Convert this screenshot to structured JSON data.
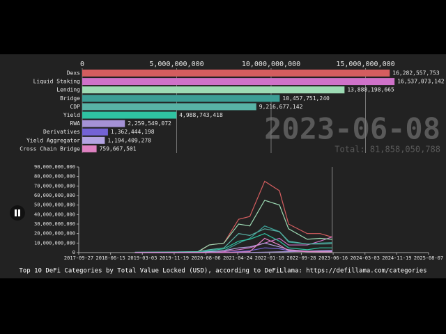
{
  "chart_data": [
    {
      "type": "bar",
      "orientation": "horizontal",
      "categories": [
        "Dexs",
        "Liquid Staking",
        "Lending",
        "Bridge",
        "CDP",
        "Yield",
        "RWA",
        "Derivatives",
        "Yield Aggregator",
        "Cross Chain Bridge"
      ],
      "values": [
        16282557753,
        16537073142,
        13888198665,
        10457751240,
        9216677142,
        4988743418,
        2259549072,
        1362444198,
        1194409278,
        759667501
      ],
      "value_labels": [
        "16,282,557,753",
        "16,537,073,142",
        "13,888,198,665",
        "10,457,751,240",
        "9,216,677,142",
        "4,988,743,418",
        "2,259,549,072",
        "1,362,444,198",
        "1,194,409,278",
        "759,667,501"
      ],
      "colors": [
        "#d45d5f",
        "#cf72c9",
        "#9ddbb4",
        "#3c9e95",
        "#58b3a6",
        "#2fc3a2",
        "#a592d6",
        "#7463d6",
        "#b4a4e2",
        "#df82c2"
      ],
      "xlim": [
        0,
        19000000000
      ],
      "xticks": [
        0,
        {
          "value": 5000000000,
          "label": "5,000,000,000"
        },
        {
          "value": 10000000000,
          "label": "10,000,000,000"
        },
        {
          "value": 15000000000,
          "label": "15,000,000,000"
        }
      ],
      "grid": true,
      "date": "2023-06-08",
      "total": "Total: 81,858,050,788"
    },
    {
      "type": "line",
      "x": [
        "2019-01-01",
        "2020-01-01",
        "2020-06-01",
        "2020-09-01",
        "2021-01-01",
        "2021-05-01",
        "2021-08-01",
        "2021-12-01",
        "2022-04-01",
        "2022-06-15",
        "2022-11-15",
        "2023-03-01",
        "2023-06-08"
      ],
      "series": [
        {
          "name": "Dexs",
          "color": "#d45d5f",
          "values": [
            100000000,
            200000000,
            500000000,
            8000000000,
            10000000000,
            35000000000,
            38000000000,
            75000000000,
            65000000000,
            30000000000,
            20000000000,
            20000000000,
            16282557753
          ]
        },
        {
          "name": "Liquid Staking",
          "color": "#cf72c9",
          "values": [
            0,
            0,
            0,
            0,
            1000000000,
            3000000000,
            5000000000,
            10000000000,
            15000000000,
            8000000000,
            8000000000,
            12000000000,
            16537073142
          ]
        },
        {
          "name": "Lending",
          "color": "#9ddbb4",
          "values": [
            300000000,
            600000000,
            1000000000,
            8000000000,
            10000000000,
            30000000000,
            28000000000,
            55000000000,
            50000000000,
            25000000000,
            14000000000,
            15000000000,
            13888198665
          ]
        },
        {
          "name": "Bridge",
          "color": "#3c9e95",
          "values": [
            0,
            0,
            0,
            500000000,
            2000000000,
            10000000000,
            15000000000,
            28000000000,
            22000000000,
            11000000000,
            9000000000,
            10000000000,
            10457751240
          ]
        },
        {
          "name": "CDP",
          "color": "#58b3a6",
          "values": [
            500000000,
            800000000,
            1000000000,
            3000000000,
            5000000000,
            20000000000,
            18000000000,
            25000000000,
            22000000000,
            12000000000,
            9000000000,
            9000000000,
            9216677142
          ]
        },
        {
          "name": "Yield",
          "color": "#2fc3a2",
          "values": [
            0,
            0,
            0,
            2000000000,
            4000000000,
            12000000000,
            14000000000,
            20000000000,
            12000000000,
            5000000000,
            3000000000,
            5000000000,
            4988743418
          ]
        },
        {
          "name": "RWA",
          "color": "#a592d6",
          "values": [
            0,
            0,
            0,
            0,
            0,
            100000000,
            200000000,
            500000000,
            800000000,
            1000000000,
            1500000000,
            2000000000,
            2259549072
          ]
        },
        {
          "name": "Derivatives",
          "color": "#7463d6",
          "values": [
            0,
            0,
            0,
            0,
            200000000,
            1000000000,
            2000000000,
            5000000000,
            4000000000,
            2000000000,
            1000000000,
            1200000000,
            1362444198
          ]
        },
        {
          "name": "Yield Aggregator",
          "color": "#b4a4e2",
          "values": [
            0,
            0,
            0,
            1000000000,
            2000000000,
            5000000000,
            6000000000,
            10000000000,
            6000000000,
            3000000000,
            1500000000,
            1300000000,
            1194409278
          ]
        },
        {
          "name": "Cross Chain Bridge",
          "color": "#df82c2",
          "values": [
            0,
            0,
            0,
            0,
            0,
            500000000,
            1000000000,
            15000000000,
            8000000000,
            2000000000,
            1000000000,
            800000000,
            759667501
          ]
        }
      ],
      "xlim": [
        "2017-09-27",
        "2025-08-07"
      ],
      "xticks": [
        "2017-09-27",
        "2018-06-15",
        "2019-03-03",
        "2019-11-19",
        "2020-08-06",
        "2021-04-24",
        "2022-01-10",
        "2022-09-28",
        "2023-06-16",
        "2024-03-03",
        "2024-11-19",
        "2025-08-07"
      ],
      "ylim": [
        0,
        90000000000
      ],
      "yticks": [
        0,
        {
          "value": 10000000000,
          "label": "10,000,000,000"
        },
        {
          "value": 20000000000,
          "label": "20,000,000,000"
        },
        {
          "value": 30000000000,
          "label": "30,000,000,000"
        },
        {
          "value": 40000000000,
          "label": "40,000,000,000"
        },
        {
          "value": 50000000000,
          "label": "50,000,000,000"
        },
        {
          "value": 60000000000,
          "label": "60,000,000,000"
        },
        {
          "value": 70000000000,
          "label": "70,000,000,000"
        },
        {
          "value": 80000000000,
          "label": "80,000,000,000"
        },
        {
          "value": 90000000000,
          "label": "90,000,000,000"
        }
      ]
    }
  ],
  "caption": "Top 10 DeFi Categories by Total Value Locked (USD), according to DeFiLlama: https://defillama.com/categories"
}
